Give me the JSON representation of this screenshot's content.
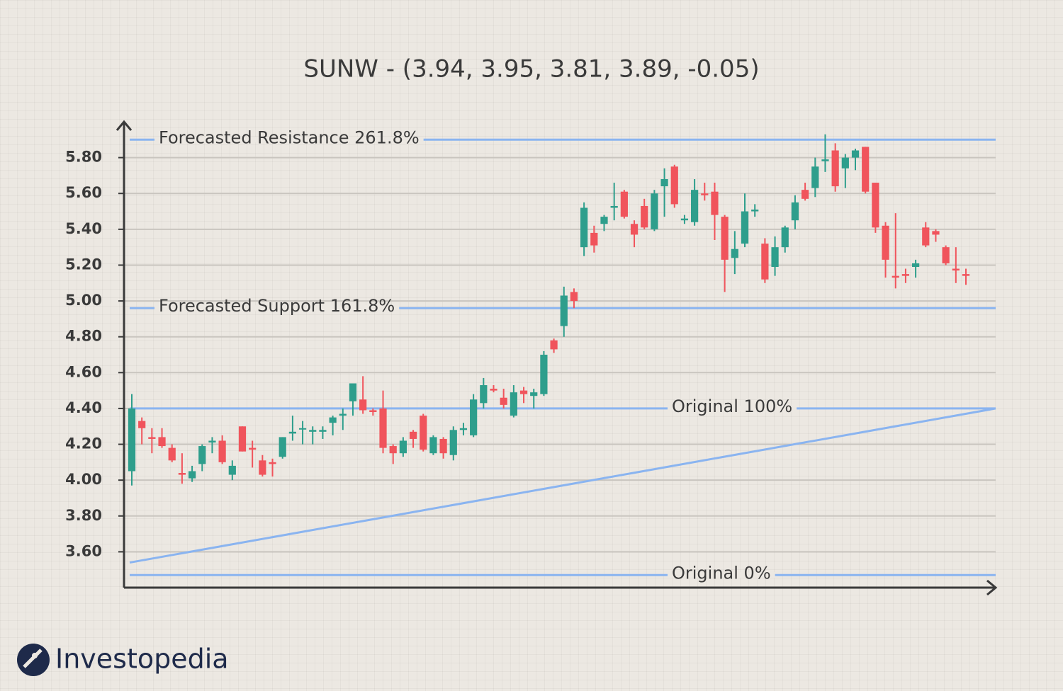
{
  "chart_data": {
    "type": "candlestick",
    "title": "SUNW - (3.94, 3.95, 3.81, 3.89, -0.05)",
    "categories": [
      null,
      null,
      null,
      null,
      null,
      null,
      null,
      null,
      null,
      null,
      null,
      null,
      null,
      null,
      null,
      null,
      null,
      null,
      null,
      null,
      null,
      null,
      null,
      null,
      null,
      null,
      null,
      null,
      null,
      null,
      null,
      null,
      null,
      null,
      null,
      null,
      null,
      null,
      null,
      null,
      null,
      null,
      null,
      null,
      null,
      null,
      null,
      null,
      null,
      null,
      null,
      null,
      null,
      null,
      null,
      null,
      null,
      null,
      null,
      null,
      null,
      null,
      null,
      null,
      null,
      null,
      null,
      null,
      null,
      null,
      null,
      null,
      null,
      null,
      null,
      null,
      null,
      null,
      null,
      null,
      null,
      null,
      null,
      null
    ],
    "open": [
      4.05,
      4.33,
      4.24,
      4.24,
      4.18,
      4.04,
      4.01,
      4.09,
      4.21,
      4.22,
      4.03,
      4.3,
      4.18,
      4.11,
      4.1,
      4.13,
      4.26,
      4.29,
      4.27,
      4.27,
      4.32,
      4.36,
      4.44,
      4.45,
      4.39,
      4.4,
      4.19,
      4.15,
      4.27,
      4.36,
      4.15,
      4.23,
      4.14,
      4.28,
      4.25,
      4.43,
      4.51,
      4.46,
      4.36,
      4.5,
      4.47,
      4.48,
      4.78,
      4.86,
      5.05,
      5.3,
      5.38,
      5.43,
      5.52,
      5.61,
      5.43,
      5.53,
      5.4,
      5.64,
      5.75,
      5.45,
      5.44,
      5.6,
      5.61,
      5.47,
      5.24,
      5.32,
      5.5,
      5.32,
      5.19,
      5.3,
      5.45,
      5.62,
      5.63,
      5.78,
      5.84,
      5.74,
      5.8,
      5.86,
      5.66,
      5.42,
      5.14,
      5.15,
      5.19,
      5.41,
      5.39,
      5.3,
      5.18,
      5.15
    ],
    "high": [
      4.48,
      4.35,
      4.29,
      4.29,
      4.2,
      4.15,
      4.08,
      4.2,
      4.24,
      4.25,
      4.11,
      4.3,
      4.22,
      4.14,
      4.12,
      4.24,
      4.36,
      4.33,
      4.3,
      4.3,
      4.36,
      4.4,
      4.54,
      4.58,
      4.4,
      4.5,
      4.2,
      4.24,
      4.28,
      4.37,
      4.25,
      4.24,
      4.3,
      4.32,
      4.48,
      4.57,
      4.53,
      4.51,
      4.53,
      4.52,
      4.51,
      4.72,
      4.79,
      5.08,
      5.07,
      5.55,
      5.42,
      5.48,
      5.66,
      5.62,
      5.45,
      5.57,
      5.62,
      5.74,
      5.76,
      5.48,
      5.68,
      5.66,
      5.66,
      5.48,
      5.39,
      5.6,
      5.54,
      5.35,
      5.36,
      5.42,
      5.59,
      5.66,
      5.8,
      5.93,
      5.88,
      5.82,
      5.85,
      5.86,
      5.66,
      5.44,
      5.49,
      5.18,
      5.23,
      5.44,
      5.4,
      5.31,
      5.3,
      5.18
    ],
    "low": [
      3.97,
      4.2,
      4.15,
      4.18,
      4.1,
      3.98,
      3.99,
      4.05,
      4.15,
      4.09,
      4.0,
      4.16,
      4.07,
      4.02,
      4.02,
      4.12,
      4.22,
      4.2,
      4.2,
      4.23,
      4.25,
      4.28,
      4.36,
      4.37,
      4.36,
      4.15,
      4.09,
      4.13,
      4.18,
      4.16,
      4.14,
      4.12,
      4.11,
      4.25,
      4.24,
      4.4,
      4.49,
      4.4,
      4.35,
      4.43,
      4.4,
      4.47,
      4.71,
      4.8,
      4.96,
      5.25,
      5.27,
      5.39,
      5.45,
      5.46,
      5.3,
      5.4,
      5.39,
      5.47,
      5.52,
      5.43,
      5.42,
      5.56,
      5.34,
      5.05,
      5.15,
      5.3,
      5.47,
      5.1,
      5.14,
      5.27,
      5.4,
      5.56,
      5.58,
      5.72,
      5.61,
      5.63,
      5.73,
      5.6,
      5.38,
      5.13,
      5.07,
      5.1,
      5.13,
      5.3,
      5.33,
      5.2,
      5.1,
      5.09
    ],
    "close": [
      4.4,
      4.29,
      4.23,
      4.19,
      4.11,
      4.03,
      4.05,
      4.19,
      4.22,
      4.1,
      4.08,
      4.16,
      4.17,
      4.03,
      4.09,
      4.24,
      4.27,
      4.29,
      4.28,
      4.28,
      4.35,
      4.37,
      4.54,
      4.39,
      4.38,
      4.18,
      4.15,
      4.22,
      4.23,
      4.17,
      4.24,
      4.15,
      4.28,
      4.29,
      4.45,
      4.53,
      4.5,
      4.42,
      4.49,
      4.48,
      4.49,
      4.7,
      4.73,
      5.03,
      5.0,
      5.52,
      5.31,
      5.47,
      5.53,
      5.47,
      5.37,
      5.41,
      5.6,
      5.68,
      5.54,
      5.46,
      5.62,
      5.59,
      5.48,
      5.23,
      5.29,
      5.5,
      5.51,
      5.12,
      5.3,
      5.41,
      5.55,
      5.57,
      5.75,
      5.79,
      5.64,
      5.8,
      5.84,
      5.61,
      5.41,
      5.23,
      5.13,
      5.14,
      5.21,
      5.31,
      5.37,
      5.21,
      5.17,
      5.14
    ],
    "up_color": "#2e9e8c",
    "down_color": "#f0545c",
    "ylim": [
      3.4,
      6.0
    ],
    "yticks": [
      {
        "value": 3.6,
        "label": "3.60"
      },
      {
        "value": 3.8,
        "label": "3.80"
      },
      {
        "value": 4.0,
        "label": "4.00"
      },
      {
        "value": 4.2,
        "label": "4.20"
      },
      {
        "value": 4.4,
        "label": "4.40"
      },
      {
        "value": 4.6,
        "label": "4.60"
      },
      {
        "value": 4.8,
        "label": "4.80"
      },
      {
        "value": 5.0,
        "label": "5.00"
      },
      {
        "value": 5.2,
        "label": "5.20"
      },
      {
        "value": 5.4,
        "label": "5.40"
      },
      {
        "value": 5.6,
        "label": "5.60"
      },
      {
        "value": 5.8,
        "label": "5.80"
      }
    ],
    "grid": true,
    "levels": [
      {
        "label": "Forecasted Resistance 261.8%",
        "value": 5.9
      },
      {
        "label": "Forecasted Support 161.8%",
        "value": 4.96
      },
      {
        "label": "Original 100%",
        "value": 4.4
      },
      {
        "label": "Original 0%",
        "value": 3.47
      }
    ],
    "level_color": "#8ab4f0",
    "trend_line": [
      3.54,
      4.4
    ]
  },
  "logo": "Investopedia"
}
